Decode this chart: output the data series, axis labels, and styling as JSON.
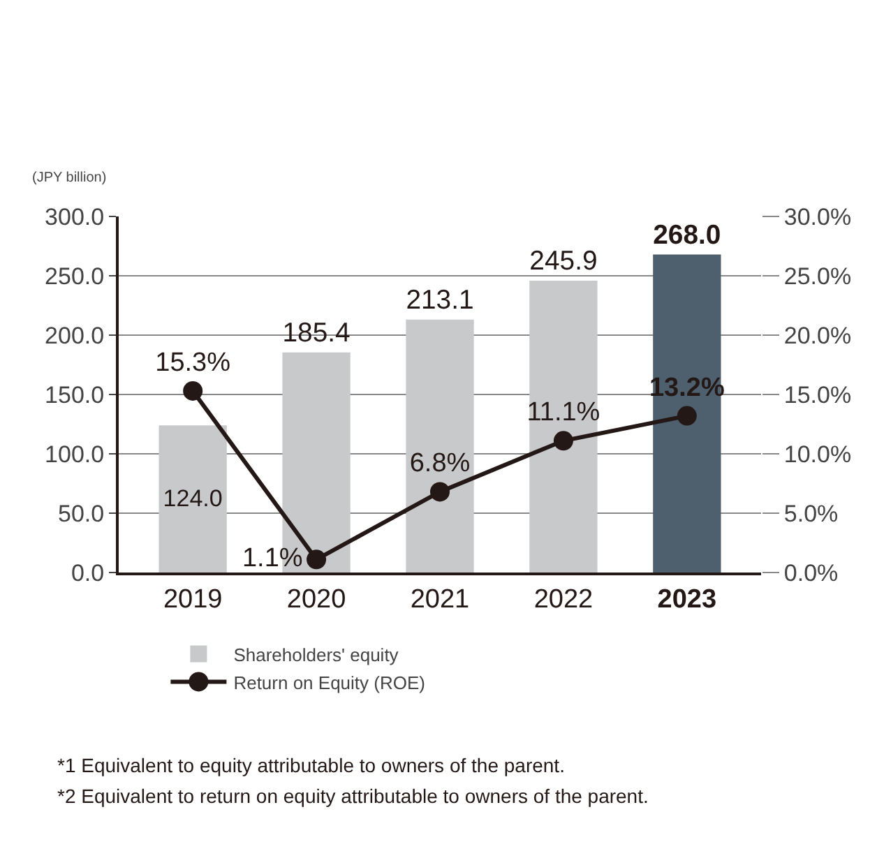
{
  "chart_data": {
    "type": "bar",
    "ylabel": "(JPY billion)",
    "categories": [
      "2019",
      "2020",
      "2021",
      "2022",
      "2023"
    ],
    "series": [
      {
        "name": "Shareholders' equity",
        "colors": [
          "#c8c9ca",
          "#c8c9ca",
          "#c8c9ca",
          "#c8c9ca",
          "#4e5f6e"
        ],
        "values": [
          124.0,
          185.4,
          213.1,
          245.9,
          268.0
        ],
        "value_labels": [
          "124.0",
          "185.4",
          "213.1",
          "245.9",
          "268.0"
        ]
      },
      {
        "name": "Return on Equity (ROE)",
        "type": "line",
        "axis": "y2",
        "color": "#231815",
        "values": [
          15.3,
          1.1,
          6.8,
          11.1,
          13.2
        ],
        "value_labels": [
          "15.3%",
          "1.1%",
          "6.8%",
          "11.1%",
          "13.2%"
        ],
        "marker": "circle"
      }
    ],
    "ylim": [
      0,
      300
    ],
    "yticks": [
      {
        "value": 0,
        "label": "0.0"
      },
      {
        "value": 50,
        "label": "50.0"
      },
      {
        "value": 100,
        "label": "100.0"
      },
      {
        "value": 150,
        "label": "150.0"
      },
      {
        "value": 200,
        "label": "200.0"
      },
      {
        "value": 250,
        "label": "250.0"
      },
      {
        "value": 300,
        "label": "300.0"
      }
    ],
    "y2lim": [
      0,
      30
    ],
    "y2ticks": [
      {
        "value": 0,
        "label": "0.0%"
      },
      {
        "value": 5,
        "label": "5.0%"
      },
      {
        "value": 10,
        "label": "10.0%"
      },
      {
        "value": 15,
        "label": "15.0%"
      },
      {
        "value": 20,
        "label": "20.0%"
      },
      {
        "value": 25,
        "label": "25.0%"
      },
      {
        "value": 30,
        "label": "30.0%"
      }
    ],
    "grid": "y",
    "legend": "bottom left",
    "annotations": [
      "*1 Equivalent to equity attributable to owners of the parent.",
      "*2 Equivalent to return on equity attributable to owners of the parent."
    ]
  }
}
